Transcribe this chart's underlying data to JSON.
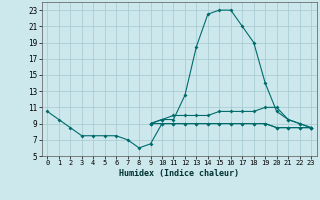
{
  "title": "",
  "xlabel": "Humidex (Indice chaleur)",
  "ylabel": "",
  "background_color": "#cde8ec",
  "grid_color": "#aacdd4",
  "line_color": "#006b6b",
  "xlim": [
    -0.5,
    23.5
  ],
  "ylim": [
    5,
    24
  ],
  "yticks": [
    5,
    7,
    9,
    11,
    13,
    15,
    17,
    19,
    21,
    23
  ],
  "xticks": [
    0,
    1,
    2,
    3,
    4,
    5,
    6,
    7,
    8,
    9,
    10,
    11,
    12,
    13,
    14,
    15,
    16,
    17,
    18,
    19,
    20,
    21,
    22,
    23
  ],
  "series": [
    [
      10.5,
      9.5,
      8.5,
      7.5,
      7.5,
      7.5,
      7.5,
      7.0,
      6.0,
      6.5,
      9.0,
      9.0,
      9.0,
      9.0,
      9.0,
      9.0,
      9.0,
      9.0,
      9.0,
      9.0,
      8.5,
      8.5,
      8.5,
      8.5
    ],
    [
      null,
      null,
      null,
      null,
      null,
      null,
      null,
      null,
      null,
      9.0,
      9.5,
      9.5,
      12.5,
      18.5,
      22.5,
      23.0,
      23.0,
      21.0,
      19.0,
      14.0,
      10.5,
      9.5,
      9.0,
      8.5
    ],
    [
      null,
      null,
      null,
      null,
      null,
      null,
      null,
      null,
      null,
      9.0,
      9.5,
      10.0,
      10.0,
      10.0,
      10.0,
      10.5,
      10.5,
      10.5,
      10.5,
      11.0,
      11.0,
      9.5,
      9.0,
      8.5
    ],
    [
      null,
      null,
      null,
      null,
      null,
      null,
      null,
      null,
      null,
      9.0,
      9.0,
      9.0,
      9.0,
      9.0,
      9.0,
      9.0,
      9.0,
      9.0,
      9.0,
      9.0,
      8.5,
      8.5,
      8.5,
      8.5
    ]
  ]
}
